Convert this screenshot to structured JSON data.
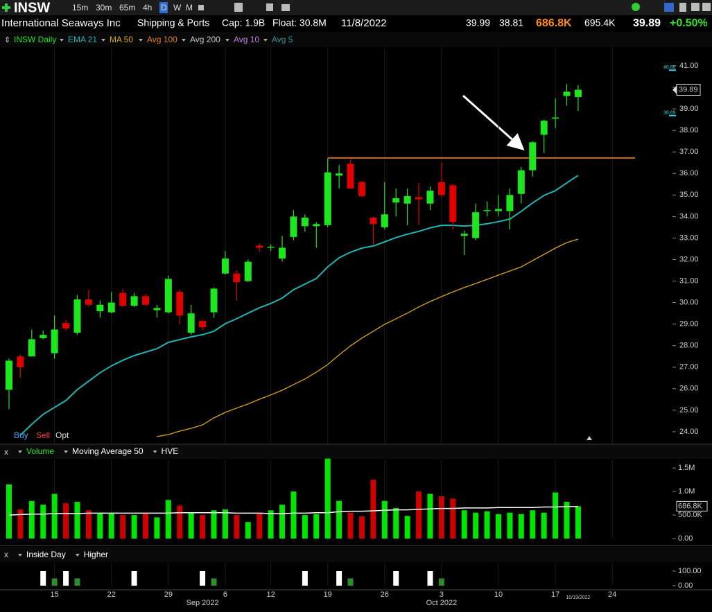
{
  "toolbar": {
    "symbol": "INSW",
    "timeframes": [
      "15m",
      "30m",
      "65m",
      "4h",
      "D",
      "W",
      "M"
    ],
    "active": "D"
  },
  "header": {
    "company": "International Seaways Inc",
    "industry": "Shipping & Ports",
    "cap": "Cap: 1.9B",
    "float": "Float: 30.8M",
    "date": "11/8/2022",
    "bid": "39.99",
    "ask": "38.81",
    "volume": "686.8K",
    "avg_volume": "695.4K",
    "last": "39.89",
    "change": "+0.50%"
  },
  "x_axis": {
    "xlim": [
      -0.79,
      57.07
    ],
    "xticks": [
      {
        "value": 4,
        "label": "15"
      },
      {
        "value": 9,
        "label": "22"
      },
      {
        "value": 14,
        "label": "29"
      },
      {
        "value": 19,
        "label": "6"
      },
      {
        "value": 23,
        "label": "12"
      },
      {
        "value": 28,
        "label": "19"
      },
      {
        "value": 33,
        "label": "26"
      },
      {
        "value": 38,
        "label": "3"
      },
      {
        "value": 43,
        "label": "10"
      },
      {
        "value": 48,
        "label": "17"
      },
      {
        "value": 53,
        "label": "24"
      }
    ],
    "months": [
      {
        "value": 17,
        "label": "Sep 2022"
      },
      {
        "value": 38,
        "label": "Oct 2022"
      }
    ],
    "last_date": "10/19/2022",
    "grid": true
  },
  "chart_data": [
    {
      "type": "candlestick",
      "symbol_label": "INSW Daily",
      "up_color": "#1ee61e",
      "down_color": "#e00000",
      "open": [
        25.95,
        27.5,
        27.5,
        28.35,
        27.65,
        29.05,
        28.6,
        30.15,
        29.6,
        29.55,
        30.45,
        29.85,
        30.3,
        29.65,
        29.55,
        30.5,
        28.6,
        29.15,
        29.55,
        31.35,
        31.35,
        31.0,
        32.65,
        32.55,
        32.05,
        33.05,
        33.55,
        33.55,
        33.6,
        35.9,
        36.45,
        35.6,
        33.95,
        33.5,
        34.65,
        34.6,
        34.9,
        34.6,
        35.6,
        35.45,
        33.1,
        33.0,
        34.25,
        34.25,
        34.25,
        35.05,
        36.15,
        37.8,
        38.55,
        39.6,
        39.55
      ],
      "high": [
        27.4,
        27.6,
        28.75,
        28.7,
        29.4,
        29.2,
        30.35,
        30.6,
        30.1,
        30.5,
        30.65,
        30.45,
        30.4,
        29.9,
        31.25,
        30.6,
        29.9,
        29.2,
        30.7,
        32.4,
        31.5,
        32.0,
        32.75,
        32.7,
        33.1,
        34.3,
        34.1,
        33.75,
        36.7,
        36.4,
        36.65,
        35.65,
        34.0,
        35.6,
        35.3,
        35.3,
        35.55,
        35.4,
        36.5,
        35.5,
        33.35,
        34.6,
        34.7,
        35.0,
        35.3,
        36.3,
        37.5,
        38.5,
        39.5,
        40.15,
        40.1
      ],
      "low": [
        25.05,
        26.5,
        27.5,
        28.3,
        27.4,
        28.7,
        28.5,
        29.8,
        29.3,
        29.5,
        29.8,
        29.8,
        29.85,
        29.3,
        29.5,
        29.0,
        28.5,
        28.7,
        29.3,
        31.3,
        30.1,
        30.95,
        32.35,
        32.4,
        31.9,
        32.9,
        33.3,
        32.55,
        33.5,
        35.3,
        35.3,
        34.9,
        32.7,
        33.4,
        34.0,
        33.6,
        33.6,
        34.3,
        34.9,
        33.4,
        32.2,
        32.9,
        34.0,
        34.0,
        33.4,
        34.6,
        35.85,
        36.95,
        38.1,
        39.15,
        38.9
      ],
      "close": [
        27.3,
        27.0,
        28.3,
        28.5,
        28.75,
        28.8,
        30.15,
        29.9,
        29.9,
        30.0,
        29.85,
        30.3,
        29.9,
        29.75,
        31.1,
        29.4,
        29.5,
        28.85,
        30.65,
        32.05,
        30.95,
        31.9,
        32.55,
        32.6,
        32.55,
        34.0,
        33.95,
        33.65,
        36.05,
        36.0,
        35.3,
        34.95,
        33.65,
        34.1,
        34.85,
        34.95,
        34.8,
        35.2,
        35.0,
        33.75,
        33.2,
        34.2,
        34.3,
        34.35,
        35.0,
        36.15,
        37.45,
        38.45,
        38.6,
        39.8,
        39.89
      ],
      "indicators": [
        {
          "name": "EMA 21",
          "color": "#1fb5b5",
          "values": [
            null,
            23.84,
            24.35,
            24.81,
            25.13,
            25.45,
            25.96,
            26.35,
            26.74,
            27.06,
            27.32,
            27.54,
            27.7,
            27.86,
            28.15,
            28.28,
            28.41,
            28.51,
            28.67,
            29.02,
            29.25,
            29.51,
            29.76,
            29.96,
            30.21,
            30.6,
            30.86,
            31.12,
            31.66,
            32.08,
            32.34,
            32.53,
            32.63,
            32.82,
            33.02,
            33.18,
            33.31,
            33.47,
            33.59,
            33.59,
            33.56,
            33.59,
            33.66,
            33.76,
            33.88,
            34.24,
            34.63,
            34.98,
            35.2,
            35.56,
            35.91
          ]
        },
        {
          "name": "MA 50",
          "color": "#d9a520",
          "values": [
            null,
            null,
            null,
            null,
            null,
            null,
            null,
            null,
            null,
            null,
            null,
            null,
            null,
            23.78,
            23.87,
            24.03,
            24.16,
            24.32,
            24.64,
            24.9,
            25.1,
            25.29,
            25.51,
            25.71,
            25.93,
            26.19,
            26.45,
            26.77,
            27.12,
            27.57,
            27.99,
            28.35,
            28.67,
            28.99,
            29.25,
            29.51,
            29.8,
            30.05,
            30.28,
            30.5,
            30.7,
            30.89,
            31.08,
            31.28,
            31.47,
            31.66,
            31.95,
            32.24,
            32.53,
            32.79,
            32.95
          ]
        },
        {
          "name": "Avg 100",
          "color": "#e07b2a"
        },
        {
          "name": "Avg 200",
          "color": "#c8c8c8"
        },
        {
          "name": "Avg 10",
          "color": "#c080e0"
        },
        {
          "name": "Avg 5",
          "color": "#3a8f8f"
        }
      ],
      "ylim": [
        23.45,
        41.87
      ],
      "yticks": [
        {
          "value": 24,
          "label": "24.00"
        },
        {
          "value": 25,
          "label": "25.00"
        },
        {
          "value": 26,
          "label": "26.00"
        },
        {
          "value": 27,
          "label": "27.00"
        },
        {
          "value": 28,
          "label": "28.00"
        },
        {
          "value": 29,
          "label": "29.00"
        },
        {
          "value": 30,
          "label": "30.00"
        },
        {
          "value": 31,
          "label": "31.00"
        },
        {
          "value": 32,
          "label": "32.00"
        },
        {
          "value": 33,
          "label": "33.00"
        },
        {
          "value": 34,
          "label": "34.00"
        },
        {
          "value": 35,
          "label": "35.00"
        },
        {
          "value": 36,
          "label": "36.00"
        },
        {
          "value": 37,
          "label": "37.00"
        },
        {
          "value": 38,
          "label": "38.00"
        },
        {
          "value": 39,
          "label": "39.00"
        },
        {
          "value": 40,
          "label": "40.00"
        },
        {
          "value": 41,
          "label": "41.00"
        }
      ],
      "markers": [
        {
          "value": 40.8,
          "label": "40.80"
        },
        {
          "value": 38.69,
          "label": "38.69"
        }
      ],
      "marker_color": "#33d6e6",
      "resistance": {
        "value": 36.72,
        "color": "#d2691e",
        "x": [
          28,
          55
        ]
      },
      "buttons": [
        "Buy",
        "Sell",
        "Opt"
      ]
    },
    {
      "type": "bar",
      "up_color": "#00e600",
      "down_color": "#cc0000",
      "series": [
        {
          "name": "Volume",
          "color": "#00e600",
          "values": [
            1.15,
            0.62,
            0.8,
            0.72,
            0.95,
            0.75,
            0.78,
            0.6,
            0.55,
            0.55,
            0.5,
            0.5,
            0.55,
            0.45,
            0.82,
            0.7,
            0.55,
            0.5,
            0.6,
            0.62,
            0.5,
            0.35,
            0.55,
            0.6,
            0.72,
            1.0,
            0.5,
            0.52,
            1.7,
            0.8,
            0.55,
            0.47,
            1.25,
            0.8,
            0.65,
            0.48,
            1.0,
            0.95,
            0.9,
            0.85,
            0.6,
            0.55,
            0.58,
            0.52,
            0.55,
            0.52,
            0.6,
            0.55,
            0.98,
            0.78,
            0.6868
          ]
        },
        {
          "name": "Moving Average 50",
          "type": "line",
          "color": "#ffffff",
          "values": [
            0.5,
            0.51,
            0.52,
            0.52,
            0.53,
            0.53,
            0.53,
            0.54,
            0.54,
            0.54,
            0.54,
            0.54,
            0.54,
            0.54,
            0.54,
            0.55,
            0.55,
            0.55,
            0.55,
            0.55,
            0.54,
            0.54,
            0.54,
            0.53,
            0.53,
            0.54,
            0.54,
            0.55,
            0.55,
            0.57,
            0.58,
            0.58,
            0.59,
            0.6,
            0.61,
            0.61,
            0.62,
            0.63,
            0.64,
            0.64,
            0.65,
            0.65,
            0.65,
            0.66,
            0.66,
            0.66,
            0.66,
            0.67,
            0.67,
            0.68,
            0.68
          ]
        }
      ],
      "extra_legend": "HVE",
      "last_value_label": "686.8K",
      "ylim": [
        0,
        1.68
      ],
      "yticks": [
        {
          "value": 1.5,
          "label": "1.5M"
        },
        {
          "value": 1.0,
          "label": "1.0M"
        },
        {
          "value": 0.5,
          "label": "500.0K"
        },
        {
          "value": 0,
          "label": "0.00"
        }
      ]
    },
    {
      "type": "bar",
      "series": [
        {
          "name": "Inside Day",
          "color": "#ffffff",
          "values": [
            0,
            0,
            0,
            100,
            0,
            100,
            0,
            0,
            0,
            0,
            0,
            100,
            0,
            0,
            0,
            0,
            0,
            100,
            0,
            0,
            0,
            0,
            0,
            0,
            0,
            0,
            100,
            0,
            0,
            100,
            0,
            0,
            0,
            0,
            100,
            0,
            0,
            100,
            0,
            0,
            0,
            0,
            0,
            0,
            0,
            0,
            0,
            0,
            0,
            0,
            0
          ]
        },
        {
          "name": "Higher",
          "color": "#2e8b2e",
          "values": [
            0,
            0,
            0,
            0,
            50,
            0,
            50,
            0,
            0,
            0,
            0,
            0,
            0,
            0,
            0,
            0,
            0,
            0,
            50,
            0,
            0,
            0,
            0,
            0,
            0,
            0,
            0,
            0,
            0,
            0,
            50,
            0,
            0,
            0,
            0,
            0,
            0,
            0,
            50,
            0,
            0,
            0,
            0,
            0,
            0,
            0,
            0,
            0,
            0,
            0,
            0
          ]
        }
      ],
      "ylim": [
        0,
        157
      ],
      "yticks": [
        {
          "value": 100,
          "label": "100.00"
        },
        {
          "value": 0,
          "label": "0.00"
        }
      ]
    }
  ]
}
